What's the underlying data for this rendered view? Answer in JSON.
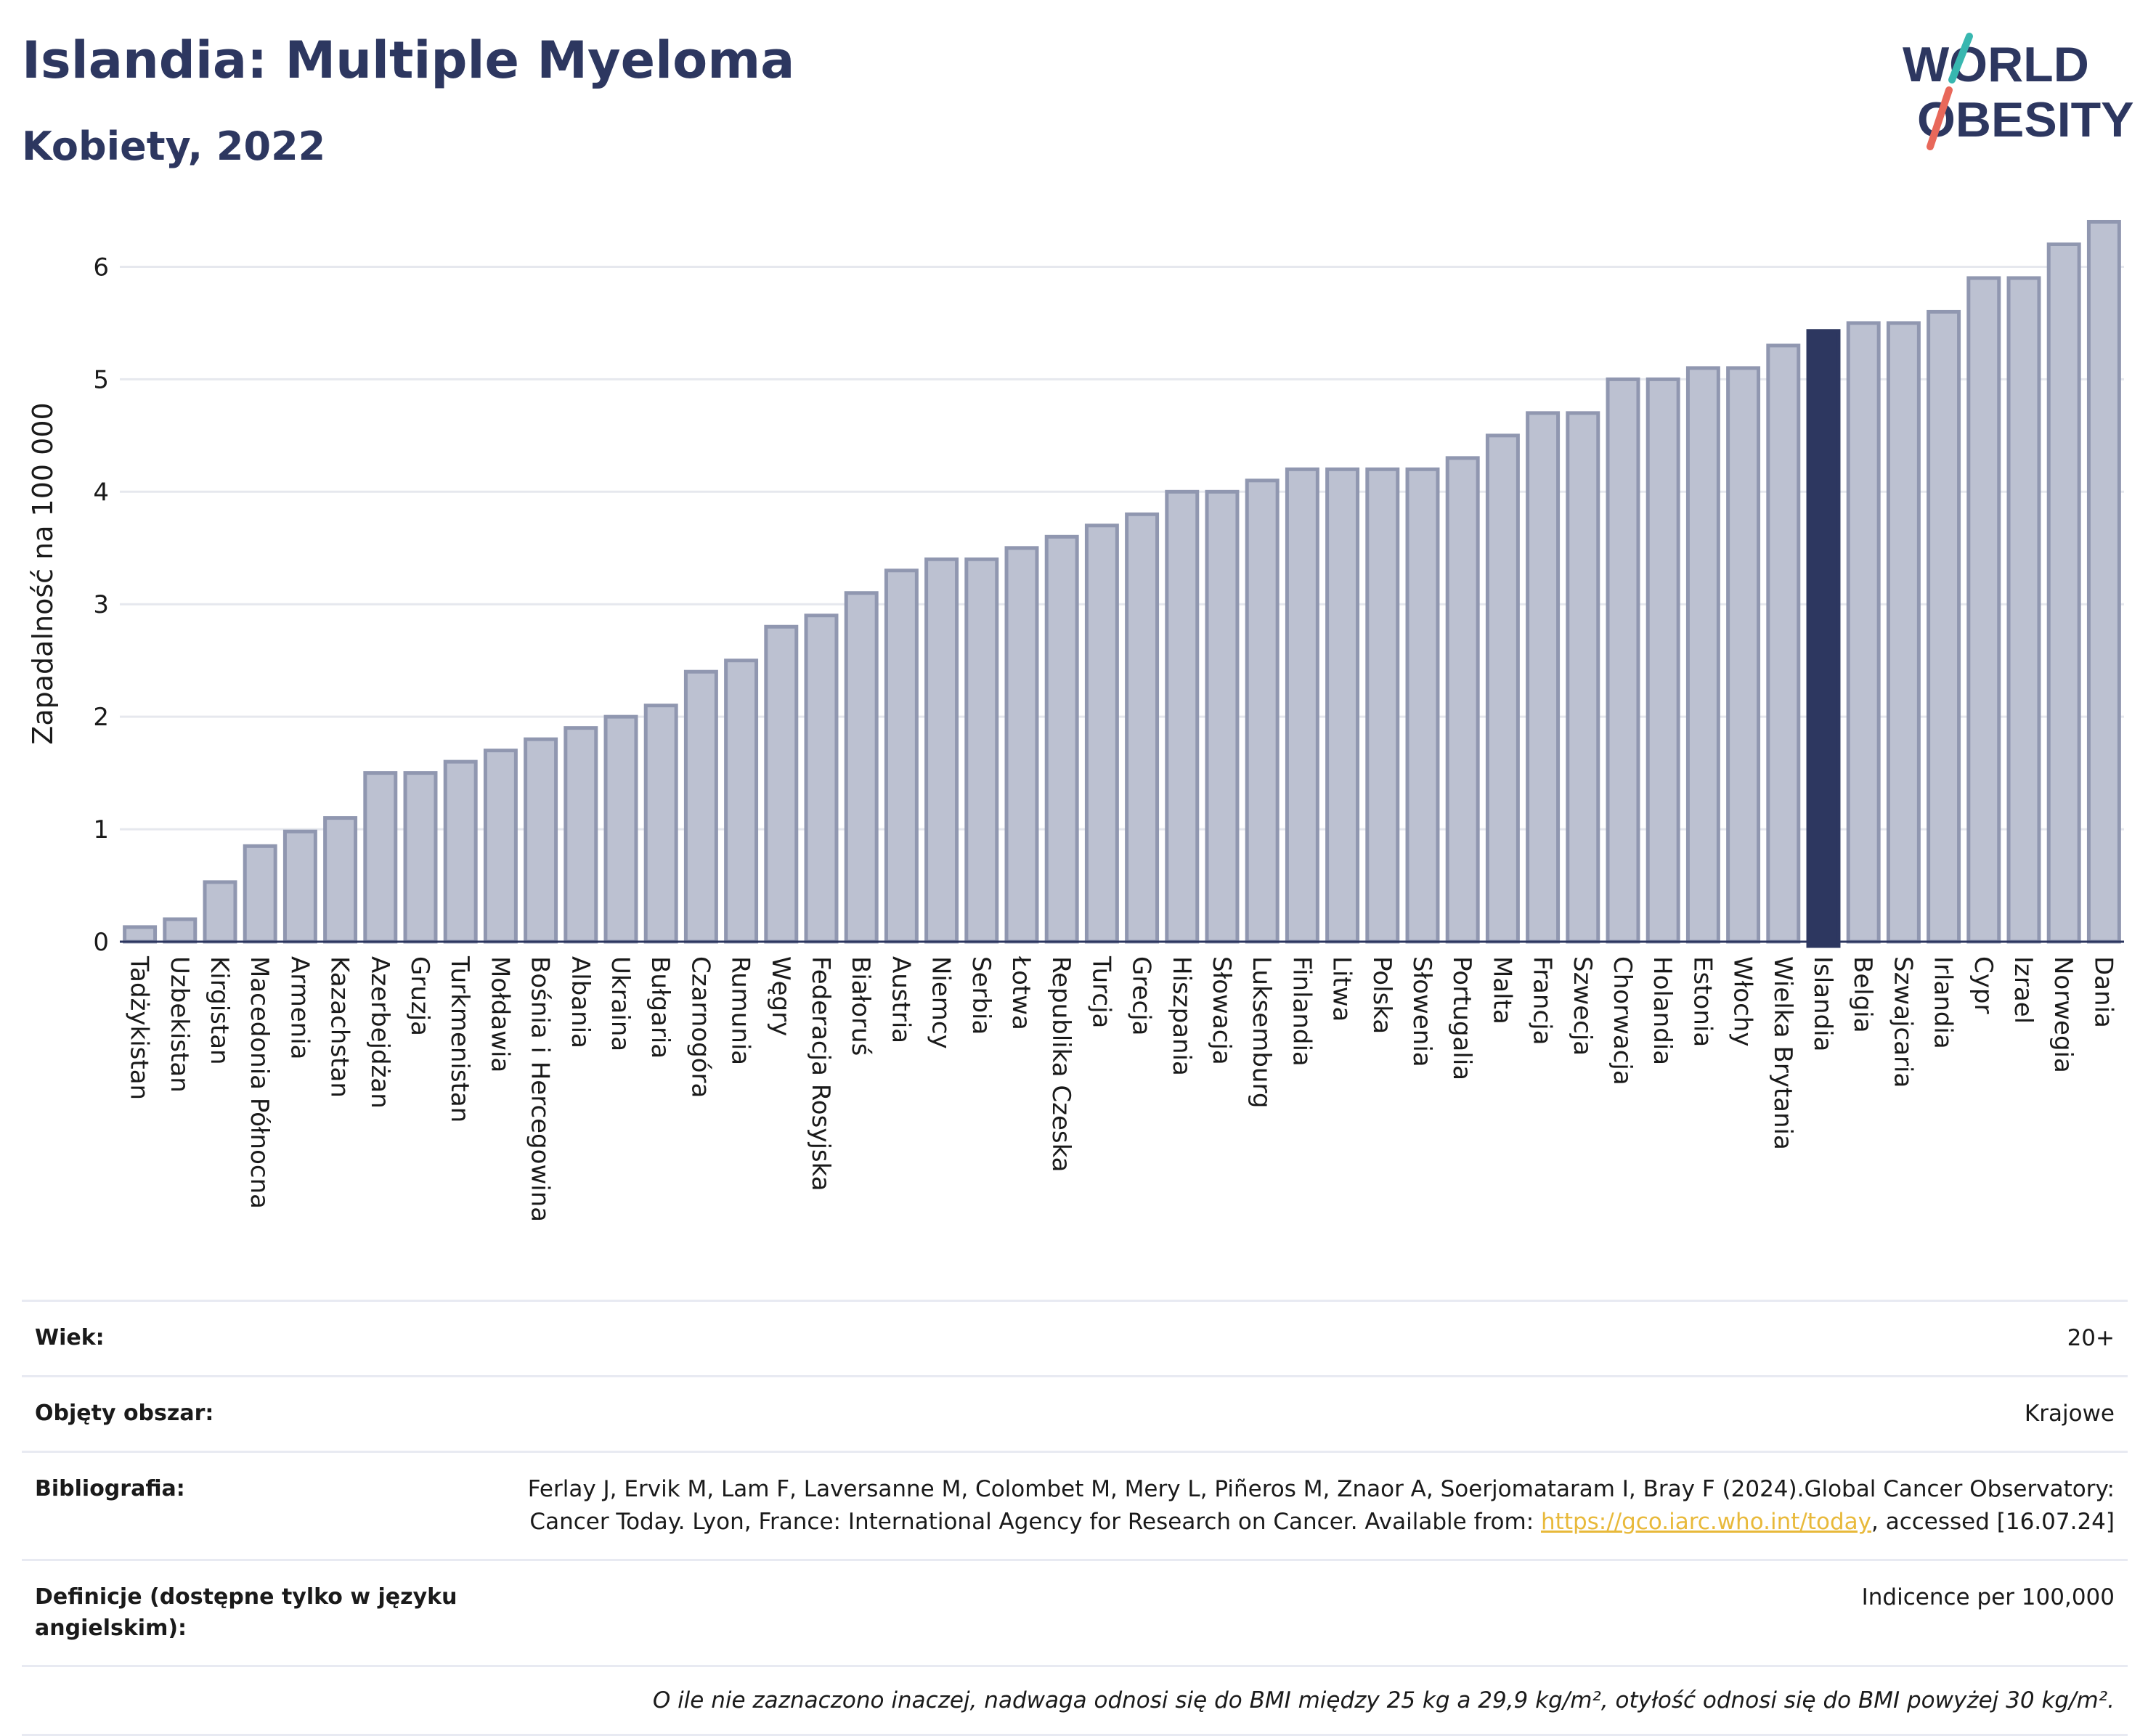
{
  "header": {
    "title": "Islandia: Multiple Myeloma",
    "subtitle": "Kobiety, 2022"
  },
  "logo": {
    "line1": "WORLD",
    "line2": "OBESITY"
  },
  "colors": {
    "bar_default": "#bcc1d1",
    "bar_border": "#9097b0",
    "bar_highlight": "#2d3760",
    "title": "#2d3760",
    "logo_accent_teal": "#38b7b0",
    "logo_accent_red": "#e8685a"
  },
  "chart_data": {
    "type": "bar",
    "ylabel": "Zapadalność na 100 000",
    "ylim": [
      0,
      6.5
    ],
    "yticks": [
      0,
      1,
      2,
      3,
      4,
      5,
      6
    ],
    "grid": true,
    "highlight": "Islandia",
    "categories": [
      "Tadżykistan",
      "Uzbekistan",
      "Kirgistan",
      "Macedonia Północna",
      "Armenia",
      "Kazachstan",
      "Azerbejdżan",
      "Gruzja",
      "Turkmenistan",
      "Mołdawia",
      "Bośnia i Hercegowina",
      "Albania",
      "Ukraina",
      "Bułgaria",
      "Czarnogóra",
      "Rumunia",
      "Węgry",
      "Federacja Rosyjska",
      "Białoruś",
      "Austria",
      "Niemcy",
      "Serbia",
      "Łotwa",
      "Republika Czeska",
      "Turcja",
      "Grecja",
      "Hiszpania",
      "Słowacja",
      "Luksemburg",
      "Finlandia",
      "Litwa",
      "Polska",
      "Słowenia",
      "Portugalia",
      "Malta",
      "Francja",
      "Szwecja",
      "Chorwacja",
      "Holandia",
      "Estonia",
      "Włochy",
      "Wielka Brytania",
      "Islandia",
      "Belgia",
      "Szwajcaria",
      "Irlandia",
      "Cypr",
      "Izrael",
      "Norwegia",
      "Dania"
    ],
    "values": [
      0.13,
      0.2,
      0.53,
      0.85,
      0.98,
      1.1,
      1.5,
      1.5,
      1.6,
      1.7,
      1.8,
      1.9,
      2.0,
      2.1,
      2.4,
      2.5,
      2.8,
      2.9,
      3.1,
      3.3,
      3.4,
      3.4,
      3.5,
      3.6,
      3.7,
      3.8,
      4.0,
      4.0,
      4.1,
      4.2,
      4.2,
      4.2,
      4.2,
      4.3,
      4.5,
      4.7,
      4.7,
      5.0,
      5.0,
      5.1,
      5.1,
      5.3,
      5.43,
      5.5,
      5.5,
      5.6,
      5.9,
      5.9,
      6.2,
      6.4
    ]
  },
  "info": {
    "rows": [
      {
        "key": "Wiek:",
        "value": "20+"
      },
      {
        "key": "Objęty obszar:",
        "value": "Krajowe"
      },
      {
        "key": "Bibliografia:",
        "value_pre": "Ferlay J, Ervik M, Lam F, Laversanne M, Colombet M, Mery L, Piñeros M, Znaor A, Soerjomataram I, Bray F (2024).Global Cancer Observatory: Cancer Today. Lyon, France: International Agency for Research on Cancer. Available from: ",
        "link": "https://gco.iarc.who.int/today",
        "value_post": ", accessed [16.07.24]"
      },
      {
        "key": "Definicje (dostępne tylko w języku angielskim):",
        "value": "Indicence per 100,000"
      }
    ],
    "note": "O ile nie zaznaczono inaczej, nadwaga odnosi się do BMI między 25 kg a 29,9 kg/m², otyłość odnosi się do BMI powyżej 30 kg/m²."
  }
}
